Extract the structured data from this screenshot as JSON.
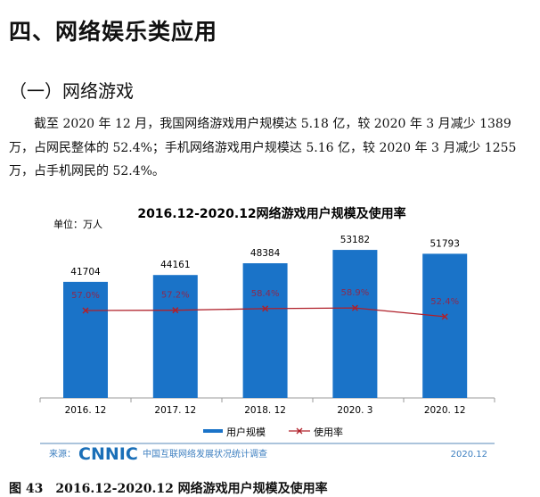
{
  "heading": "四、网络娱乐类应用",
  "subheading": "（一）网络游戏",
  "paragraph": "截至 2020 年 12 月，我国网络游戏用户规模达 5.18 亿，较 2020 年 3 月减少 1389 万，占网民整体的 52.4%；手机网络游戏用户规模达 5.16 亿，较 2020 年 3 月减少 1255 万，占手机网民的 52.4%。",
  "caption": "图 43　2016.12-2020.12 网络游戏用户规模及使用率",
  "chart_data": {
    "type": "bar",
    "title": "2016.12-2020.12网络游戏用户规模及使用率",
    "unit": "单位：万人",
    "categories": [
      "2016. 12",
      "2017. 12",
      "2018. 12",
      "2020. 3",
      "2020. 12"
    ],
    "series": [
      {
        "name": "用户规模",
        "type": "bar",
        "values": [
          41704,
          44161,
          48384,
          53182,
          51793
        ],
        "color": "#1a73c8"
      },
      {
        "name": "使用率",
        "type": "line",
        "values": [
          57.0,
          57.2,
          58.4,
          58.9,
          52.4
        ],
        "labels": [
          "57.0%",
          "57.2%",
          "58.4%",
          "58.9%",
          "52.4%"
        ],
        "color": "#b0202a"
      }
    ],
    "source_label": "来源：",
    "source_logo": "CNNIC",
    "source_text": "中国互联网络发展状况统计调查",
    "source_date": "2020.12"
  }
}
